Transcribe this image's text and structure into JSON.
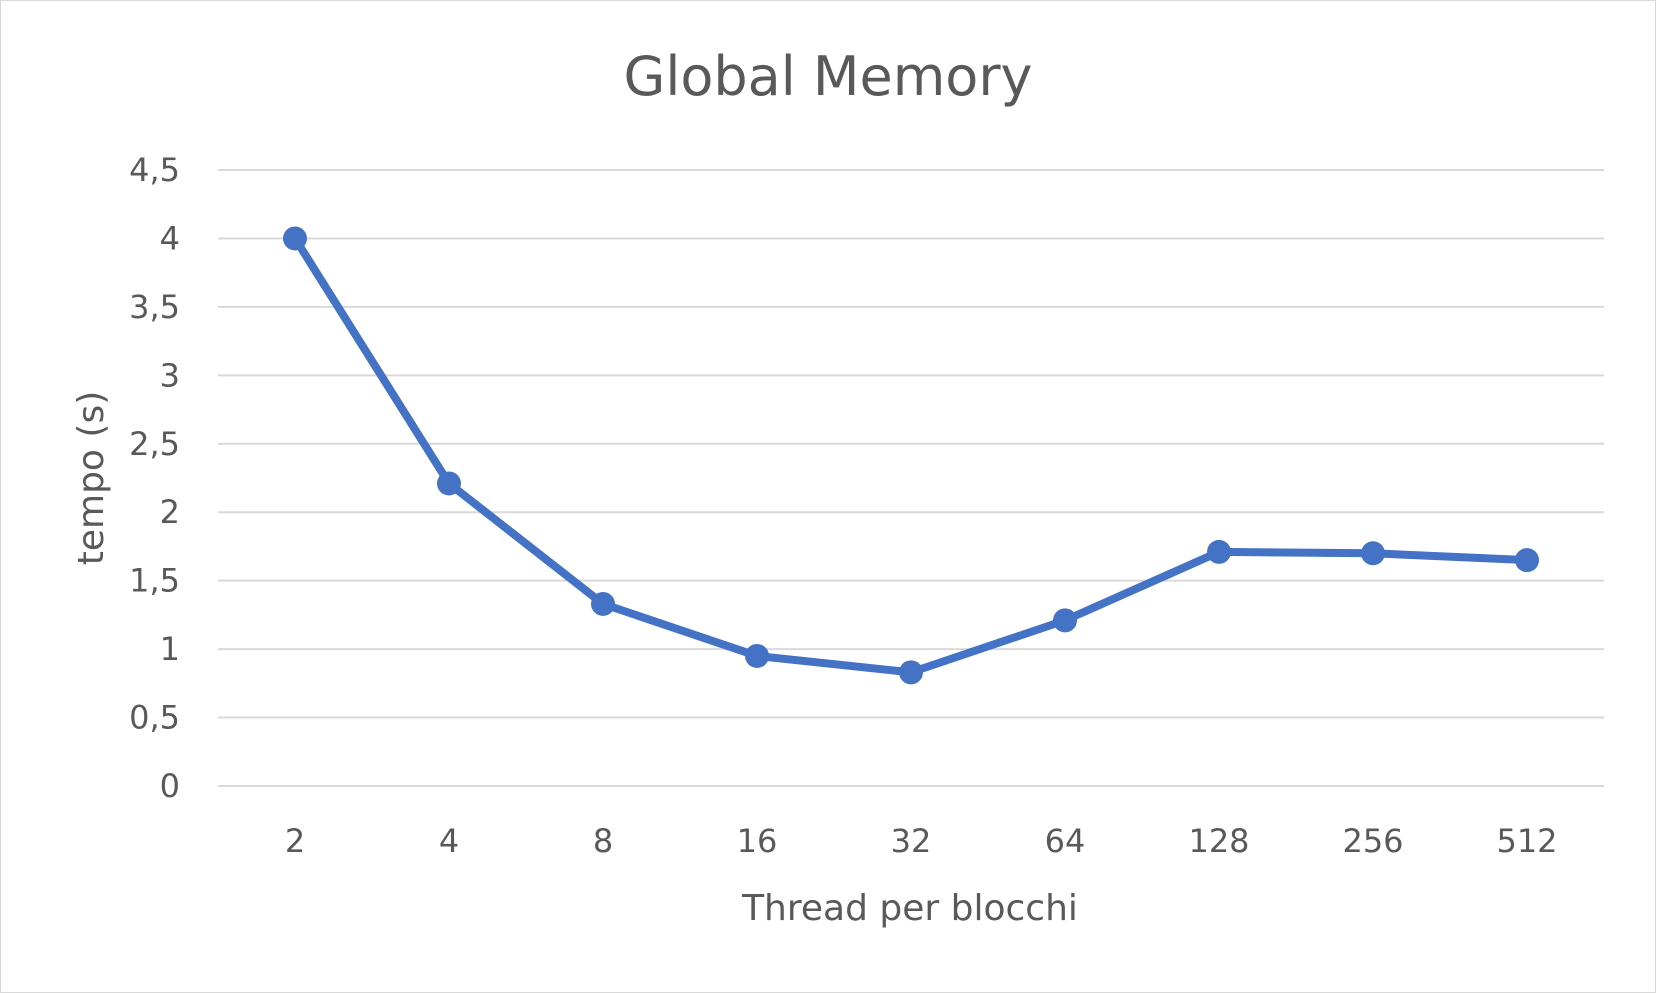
{
  "chart_data": {
    "type": "line",
    "title": "Global Memory",
    "xlabel": "Thread per blocchi",
    "ylabel": "tempo (s)",
    "categories": [
      "2",
      "4",
      "8",
      "16",
      "32",
      "64",
      "128",
      "256",
      "512"
    ],
    "series": [
      {
        "values": [
          4.0,
          2.21,
          1.33,
          0.95,
          0.83,
          1.21,
          1.71,
          1.7,
          1.65
        ],
        "color": "#4472c4"
      }
    ],
    "ylim": [
      0,
      4.5
    ],
    "y_ticks": [
      "0",
      "0,5",
      "1",
      "1,5",
      "2",
      "2,5",
      "3",
      "3,5",
      "4",
      "4,5"
    ],
    "grid": true,
    "legend": "none"
  }
}
